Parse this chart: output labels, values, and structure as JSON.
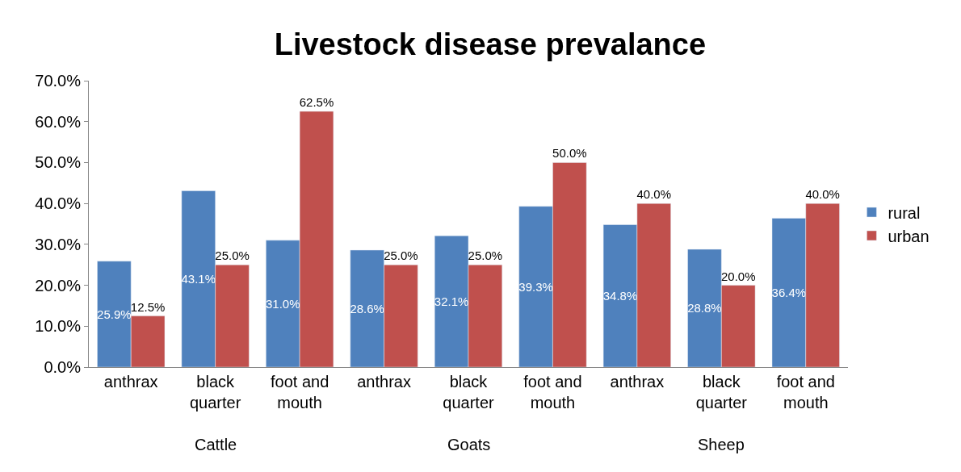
{
  "chart_data": {
    "type": "bar",
    "title": "Livestock disease prevalance",
    "categories": [
      "anthrax",
      "black quarter",
      "foot and mouth",
      "anthrax",
      "black quarter",
      "foot and mouth",
      "anthrax",
      "black quarter",
      "foot and mouth"
    ],
    "annotations": [
      "Cattle",
      "Goats",
      "Sheep"
    ],
    "series": [
      {
        "name": "rural",
        "color": "#4f81bd",
        "values": [
          25.9,
          43.1,
          31.0,
          28.6,
          32.1,
          39.3,
          34.8,
          28.8,
          36.4
        ],
        "value_labels": [
          "25.9%",
          "43.1%",
          "31.0%",
          "28.6%",
          "32.1%",
          "39.3%",
          "34.8%",
          "28.8%",
          "36.4%"
        ]
      },
      {
        "name": "urban",
        "color": "#c0504d",
        "values": [
          12.5,
          25.0,
          62.5,
          25.0,
          25.0,
          50.0,
          40.0,
          20.0,
          40.0
        ],
        "value_labels": [
          "12.5%",
          "25.0%",
          "62.5%",
          "25.0%",
          "25.0%",
          "50.0%",
          "40.0%",
          "20.0%",
          "40.0%"
        ]
      }
    ],
    "ylim": [
      0,
      70
    ],
    "yticks": [
      {
        "value": 0,
        "label": "0.0%"
      },
      {
        "value": 10,
        "label": "10.0%"
      },
      {
        "value": 20,
        "label": "20.0%"
      },
      {
        "value": 30,
        "label": "30.0%"
      },
      {
        "value": 40,
        "label": "40.0%"
      },
      {
        "value": 50,
        "label": "50.0%"
      },
      {
        "value": 60,
        "label": "60.0%"
      },
      {
        "value": 70,
        "label": "70.0%"
      }
    ],
    "legend": "right"
  }
}
